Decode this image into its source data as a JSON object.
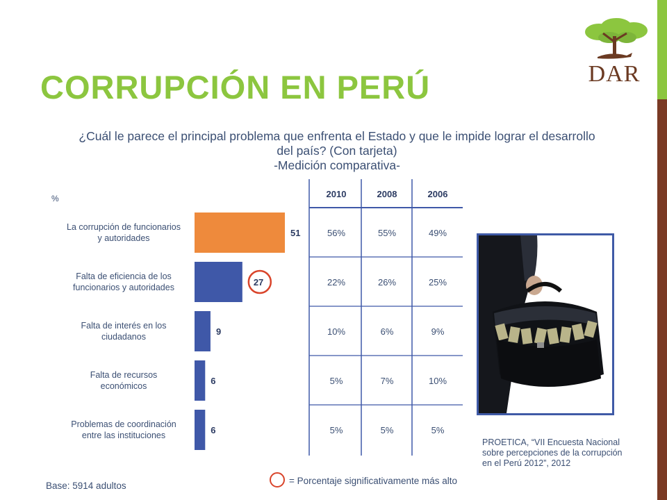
{
  "slide": {
    "title": "CORRUPCIÓN EN PERÚ",
    "logo_text": "DAR"
  },
  "question_lines": [
    "¿Cuál le parece el principal problema que enfrenta el Estado y que le impide lograr el desarrollo",
    "del país? (Con tarjeta)",
    "-Medición comparativa-"
  ],
  "chart_data": {
    "type": "bar",
    "orientation": "horizontal",
    "unit_label": "%",
    "categories": [
      [
        "La corrupción de funcionarios",
        "y autoridades"
      ],
      [
        "Falta de eficiencia de los",
        "funcionarios y autoridades"
      ],
      [
        "Falta de interés en los",
        "ciudadanos"
      ],
      [
        "Falta de recursos",
        "económicos"
      ],
      [
        "Problemas de coordinación",
        "entre las instituciones"
      ]
    ],
    "values": [
      51,
      27,
      9,
      6,
      6
    ],
    "bar_colors": [
      "#ee8a3c",
      "#3f58a8",
      "#3f58a8",
      "#3f58a8",
      "#3f58a8"
    ],
    "highlighted_index": 1,
    "highlight_color": "#d9442a",
    "xlim": [
      0,
      51
    ],
    "table": {
      "columns": [
        "2010",
        "2008",
        "2006"
      ],
      "rows": [
        [
          "56%",
          "55%",
          "49%"
        ],
        [
          "22%",
          "26%",
          "25%"
        ],
        [
          "10%",
          "6%",
          "9%"
        ],
        [
          "5%",
          "7%",
          "10%"
        ],
        [
          "5%",
          "5%",
          "5%"
        ]
      ]
    }
  },
  "footer": {
    "base": "Base: 5914 adultos",
    "legend": "= Porcentaje significativamente más alto"
  },
  "source_lines": [
    "PROETICA, “VII Encuesta Nacional",
    "sobre percepciones de la corrupción",
    "en el Perú 2012”, 2012"
  ]
}
